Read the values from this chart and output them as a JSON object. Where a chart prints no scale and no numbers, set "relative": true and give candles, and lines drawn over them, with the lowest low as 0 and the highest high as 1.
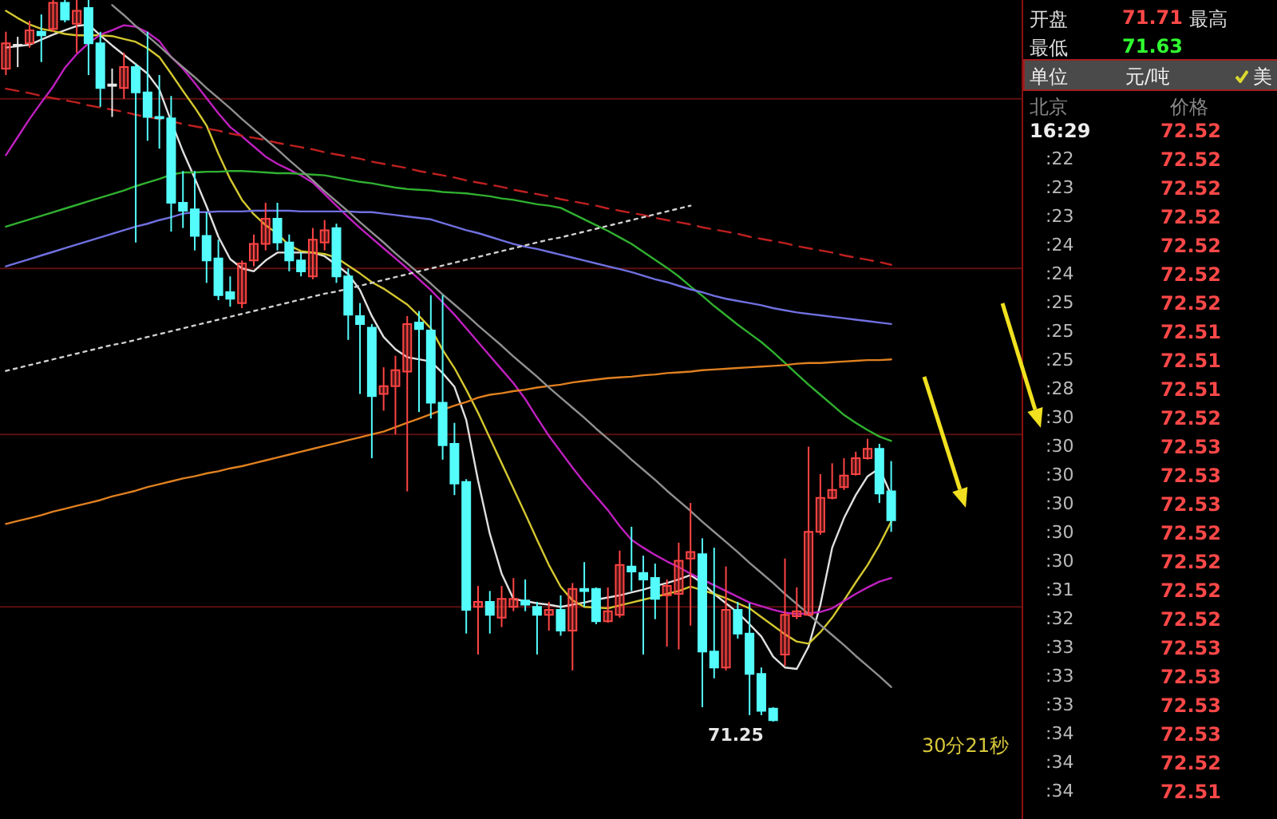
{
  "chart_data": [
    {
      "type": "candlestick",
      "relative": true,
      "tick_labels": false,
      "categories": [
        null,
        null,
        null,
        null,
        null,
        null,
        null,
        null,
        null,
        null,
        null,
        null,
        null,
        null,
        null,
        null,
        null,
        null,
        null,
        null,
        null,
        null,
        null,
        null,
        null,
        null,
        null,
        null,
        null,
        null,
        null,
        null,
        null,
        null,
        null,
        null,
        null,
        null,
        null,
        null,
        null,
        null,
        null,
        null,
        null,
        null,
        null,
        null,
        null,
        null,
        null,
        null,
        null,
        null,
        null,
        null,
        null,
        null,
        null,
        null,
        null,
        null,
        null,
        null,
        null,
        null,
        null,
        null,
        null,
        null,
        null,
        null,
        null,
        null,
        null,
        null
      ],
      "ohlc": [
        [
          0.905,
          0.956,
          0.896,
          0.94
        ],
        [
          0.938,
          0.949,
          0.907,
          0.937
        ],
        [
          0.94,
          0.971,
          0.934,
          0.958
        ],
        [
          0.956,
          0.98,
          0.914,
          0.951
        ],
        [
          0.96,
          1,
          0.956,
          0.996
        ],
        [
          0.996,
          1,
          0.969,
          0.973
        ],
        [
          0.967,
          1,
          0.927,
          0.985
        ],
        [
          0.989,
          1,
          0.896,
          0.94
        ],
        [
          0.94,
          0.956,
          0.852,
          0.878
        ],
        [
          0.883,
          0.905,
          0.838,
          0.881
        ],
        [
          0.878,
          0.927,
          0.863,
          0.907
        ],
        [
          0.907,
          0.912,
          0.664,
          0.872
        ],
        [
          0.872,
          0.956,
          0.805,
          0.838
        ],
        [
          0.838,
          0.896,
          0.794,
          0.836
        ],
        [
          0.836,
          0.867,
          0.679,
          0.719
        ],
        [
          0.719,
          0.763,
          0.684,
          0.708
        ],
        [
          0.71,
          0.763,
          0.653,
          0.673
        ],
        [
          0.673,
          0.706,
          0.608,
          0.639
        ],
        [
          0.642,
          0.668,
          0.584,
          0.591
        ],
        [
          0.595,
          0.617,
          0.575,
          0.586
        ],
        [
          0.58,
          0.639,
          0.573,
          0.635
        ],
        [
          0.639,
          0.675,
          0.631,
          0.662
        ],
        [
          0.662,
          0.719,
          0.653,
          0.697
        ],
        [
          0.697,
          0.719,
          0.653,
          0.664
        ],
        [
          0.664,
          0.675,
          0.624,
          0.639
        ],
        [
          0.639,
          0.65,
          0.617,
          0.624
        ],
        [
          0.617,
          0.684,
          0.613,
          0.668
        ],
        [
          0.664,
          0.695,
          0.653,
          0.681
        ],
        [
          0.684,
          0.69,
          0.608,
          0.617
        ],
        [
          0.617,
          0.628,
          0.529,
          0.564
        ],
        [
          0.562,
          0.58,
          0.454,
          0.551
        ],
        [
          0.546,
          0.551,
          0.365,
          0.451
        ],
        [
          0.454,
          0.491,
          0.431,
          0.465
        ],
        [
          0.465,
          0.507,
          0.398,
          0.487
        ],
        [
          0.485,
          0.562,
          0.319,
          0.551
        ],
        [
          0.553,
          0.569,
          0.429,
          0.544
        ],
        [
          0.542,
          0.591,
          0.42,
          0.442
        ],
        [
          0.442,
          0.591,
          0.363,
          0.383
        ],
        [
          0.385,
          0.414,
          0.314,
          0.33
        ],
        [
          0.332,
          0.336,
          0.122,
          0.155
        ],
        [
          0.159,
          0.188,
          0.093,
          0.166
        ],
        [
          0.166,
          0.181,
          0.122,
          0.148
        ],
        [
          0.144,
          0.188,
          0.131,
          0.17
        ],
        [
          0.159,
          0.199,
          0.153,
          0.17
        ],
        [
          0.168,
          0.197,
          0.153,
          0.162
        ],
        [
          0.159,
          0.166,
          0.093,
          0.148
        ],
        [
          0.148,
          0.166,
          0.126,
          0.155
        ],
        [
          0.155,
          0.175,
          0.119,
          0.126
        ],
        [
          0.126,
          0.192,
          0.071,
          0.184
        ],
        [
          0.184,
          0.221,
          0.159,
          0.181
        ],
        [
          0.184,
          0.186,
          0.135,
          0.139
        ],
        [
          0.139,
          0.186,
          0.137,
          0.153
        ],
        [
          0.148,
          0.237,
          0.144,
          0.217
        ],
        [
          0.215,
          0.27,
          0.181,
          0.208
        ],
        [
          0.206,
          0.23,
          0.093,
          0.197
        ],
        [
          0.199,
          0.219,
          0.142,
          0.17
        ],
        [
          0.175,
          0.197,
          0.104,
          0.188
        ],
        [
          0.177,
          0.248,
          0.1,
          0.223
        ],
        [
          0.226,
          0.303,
          0.133,
          0.235
        ],
        [
          0.232,
          0.254,
          0.02,
          0.097
        ],
        [
          0.097,
          0.241,
          0.06,
          0.075
        ],
        [
          0.075,
          0.215,
          0.071,
          0.155
        ],
        [
          0.155,
          0.166,
          0.115,
          0.122
        ],
        [
          0.122,
          0.164,
          0.009,
          0.066
        ],
        [
          0.066,
          0.075,
          0.009,
          0.015
        ],
        [
          0.018,
          0.02,
          0,
          0.002
        ],
        [
          0.093,
          0.226,
          0.077,
          0.148
        ],
        [
          0.146,
          0.186,
          0.142,
          0.153
        ],
        [
          0.148,
          0.381,
          0.146,
          0.263
        ],
        [
          0.263,
          0.343,
          0.259,
          0.31
        ],
        [
          0.31,
          0.358,
          0.308,
          0.321
        ],
        [
          0.325,
          0.365,
          0.321,
          0.341
        ],
        [
          0.343,
          0.374,
          0.341,
          0.365
        ],
        [
          0.365,
          0.392,
          0.363,
          0.378
        ],
        [
          0.378,
          0.385,
          0.303,
          0.316
        ],
        [
          0.319,
          0.361,
          0.263,
          0.279
        ]
      ],
      "colors": [
        "#ff4444",
        "#e8e8e8",
        "#ff4444",
        "#54fcfc",
        "#ff4444",
        "#54fcfc",
        "#ff4444",
        "#54fcfc",
        "#54fcfc",
        "#e8e8e8",
        "#ff4444",
        "#54fcfc",
        "#54fcfc",
        "#54fcfc",
        "#54fcfc",
        "#54fcfc",
        "#54fcfc",
        "#54fcfc",
        "#54fcfc",
        "#54fcfc",
        "#ff4444",
        "#ff4444",
        "#ff4444",
        "#54fcfc",
        "#54fcfc",
        "#54fcfc",
        "#ff4444",
        "#ff4444",
        "#54fcfc",
        "#54fcfc",
        "#54fcfc",
        "#54fcfc",
        "#ff4444",
        "#ff4444",
        "#ff4444",
        "#54fcfc",
        "#54fcfc",
        "#54fcfc",
        "#54fcfc",
        "#54fcfc",
        "#ff4444",
        "#54fcfc",
        "#ff4444",
        "#ff4444",
        "#54fcfc",
        "#54fcfc",
        "#ff4444",
        "#54fcfc",
        "#ff4444",
        "#54fcfc",
        "#54fcfc",
        "#ff4444",
        "#ff4444",
        "#54fcfc",
        "#54fcfc",
        "#54fcfc",
        "#ff4444",
        "#ff4444",
        "#ff4444",
        "#54fcfc",
        "#54fcfc",
        "#ff4444",
        "#54fcfc",
        "#54fcfc",
        "#54fcfc",
        "#54fcfc",
        "#ff4444",
        "#ff4444",
        "#ff4444",
        "#ff4444",
        "#ff4444",
        "#ff4444",
        "#ff4444",
        "#ff4444",
        "#54fcfc",
        "#54fcfc"
      ],
      "series": [
        {
          "type": "line",
          "color": "#e0e0e0",
          "values": [
            0.934,
            0.936,
            0.938,
            0.945,
            0.952,
            0.958,
            0.964,
            0.966,
            0.951,
            0.937,
            0.924,
            0.911,
            0.898,
            0.876,
            0.832,
            0.79,
            0.753,
            0.714,
            0.672,
            0.641,
            0.628,
            0.624,
            0.639,
            0.65,
            0.65,
            0.65,
            0.65,
            0.645,
            0.633,
            0.62,
            0.598,
            0.562,
            0.533,
            0.516,
            0.505,
            0.502,
            0.499,
            0.483,
            0.464,
            0.418,
            0.334,
            0.26,
            0.205,
            0.17,
            0.167,
            0.164,
            0.162,
            0.159,
            0.162,
            0.165,
            0.169,
            0.172,
            0.175,
            0.179,
            0.183,
            0.188,
            0.192,
            0.197,
            0.203,
            0.192,
            0.177,
            0.164,
            0.151,
            0.135,
            0.118,
            0.09,
            0.075,
            0.073,
            0.104,
            0.162,
            0.241,
            0.282,
            0.314,
            0.34,
            0.351,
            0.314
          ]
        },
        {
          "type": "line",
          "color": "#d4c830",
          "values": [
            0.985,
            0.975,
            0.966,
            0.96,
            0.957,
            0.953,
            0.951,
            0.951,
            0.951,
            0.95,
            0.946,
            0.942,
            0.933,
            0.921,
            0.898,
            0.874,
            0.851,
            0.826,
            0.787,
            0.752,
            0.723,
            0.703,
            0.688,
            0.676,
            0.66,
            0.652,
            0.65,
            0.648,
            0.643,
            0.632,
            0.621,
            0.609,
            0.6,
            0.589,
            0.578,
            0.562,
            0.545,
            0.515,
            0.49,
            0.46,
            0.428,
            0.393,
            0.358,
            0.323,
            0.288,
            0.252,
            0.217,
            0.187,
            0.168,
            0.159,
            0.158,
            0.157,
            0.161,
            0.165,
            0.169,
            0.173,
            0.177,
            0.181,
            0.187,
            0.182,
            0.177,
            0.171,
            0.164,
            0.157,
            0.145,
            0.133,
            0.121,
            0.111,
            0.108,
            0.124,
            0.144,
            0.168,
            0.193,
            0.217,
            0.245,
            0.277
          ]
        },
        {
          "type": "line",
          "color": "#c020c0",
          "values": [
            0.785,
            0.81,
            0.835,
            0.858,
            0.88,
            0.906,
            0.925,
            0.94,
            0.952,
            0.958,
            0.965,
            0.963,
            0.955,
            0.943,
            0.921,
            0.905,
            0.885,
            0.864,
            0.843,
            0.824,
            0.811,
            0.797,
            0.783,
            0.773,
            0.765,
            0.757,
            0.747,
            0.731,
            0.715,
            0.699,
            0.684,
            0.67,
            0.656,
            0.642,
            0.628,
            0.613,
            0.598,
            0.581,
            0.564,
            0.545,
            0.526,
            0.507,
            0.488,
            0.469,
            0.447,
            0.421,
            0.396,
            0.374,
            0.352,
            0.331,
            0.312,
            0.293,
            0.271,
            0.252,
            0.241,
            0.231,
            0.222,
            0.214,
            0.205,
            0.197,
            0.189,
            0.181,
            0.173,
            0.165,
            0.16,
            0.155,
            0.151,
            0.149,
            0.15,
            0.152,
            0.157,
            0.167,
            0.177,
            0.186,
            0.194,
            0.199
          ]
        },
        {
          "type": "line",
          "color": "#30b030",
          "values": [
            0.686,
            0.691,
            0.696,
            0.701,
            0.706,
            0.711,
            0.716,
            0.721,
            0.726,
            0.731,
            0.736,
            0.742,
            0.747,
            0.752,
            0.758,
            0.761,
            0.761,
            0.762,
            0.762,
            0.763,
            0.763,
            0.762,
            0.761,
            0.76,
            0.76,
            0.759,
            0.758,
            0.757,
            0.754,
            0.751,
            0.748,
            0.746,
            0.743,
            0.74,
            0.738,
            0.737,
            0.736,
            0.734,
            0.733,
            0.732,
            0.73,
            0.728,
            0.725,
            0.723,
            0.72,
            0.717,
            0.715,
            0.712,
            0.704,
            0.696,
            0.688,
            0.68,
            0.671,
            0.662,
            0.651,
            0.64,
            0.629,
            0.617,
            0.603,
            0.59,
            0.576,
            0.563,
            0.55,
            0.538,
            0.526,
            0.512,
            0.497,
            0.482,
            0.467,
            0.453,
            0.439,
            0.425,
            0.414,
            0.404,
            0.395,
            0.389
          ]
        },
        {
          "type": "line",
          "color": "#7070e0",
          "values": [
            0.631,
            0.636,
            0.641,
            0.646,
            0.651,
            0.656,
            0.661,
            0.666,
            0.671,
            0.676,
            0.681,
            0.686,
            0.69,
            0.695,
            0.699,
            0.704,
            0.706,
            0.706,
            0.707,
            0.707,
            0.707,
            0.708,
            0.708,
            0.708,
            0.708,
            0.707,
            0.707,
            0.707,
            0.707,
            0.707,
            0.706,
            0.706,
            0.704,
            0.702,
            0.7,
            0.698,
            0.696,
            0.691,
            0.686,
            0.681,
            0.677,
            0.672,
            0.667,
            0.662,
            0.658,
            0.655,
            0.651,
            0.647,
            0.643,
            0.639,
            0.635,
            0.631,
            0.627,
            0.623,
            0.618,
            0.613,
            0.609,
            0.604,
            0.599,
            0.595,
            0.59,
            0.586,
            0.583,
            0.58,
            0.577,
            0.573,
            0.57,
            0.567,
            0.565,
            0.563,
            0.561,
            0.559,
            0.557,
            0.555,
            0.553,
            0.551
          ]
        },
        {
          "type": "line",
          "color": "#e08020",
          "values": [
            0.274,
            0.278,
            0.282,
            0.286,
            0.291,
            0.295,
            0.299,
            0.303,
            0.307,
            0.312,
            0.316,
            0.32,
            0.325,
            0.329,
            0.333,
            0.337,
            0.34,
            0.344,
            0.347,
            0.351,
            0.354,
            0.358,
            0.362,
            0.366,
            0.37,
            0.374,
            0.378,
            0.382,
            0.386,
            0.39,
            0.394,
            0.398,
            0.402,
            0.408,
            0.414,
            0.42,
            0.426,
            0.432,
            0.438,
            0.443,
            0.449,
            0.453,
            0.455,
            0.458,
            0.46,
            0.463,
            0.465,
            0.467,
            0.47,
            0.472,
            0.474,
            0.476,
            0.477,
            0.478,
            0.48,
            0.481,
            0.483,
            0.484,
            0.485,
            0.487,
            0.488,
            0.489,
            0.49,
            0.491,
            0.492,
            0.493,
            0.494,
            0.496,
            0.497,
            0.497,
            0.498,
            0.499,
            0.5,
            0.501,
            0.501,
            0.502
          ]
        },
        {
          "type": "line",
          "color": "#909090",
          "values": [
            null,
            null,
            null,
            null,
            null,
            null,
            null,
            null,
            null,
            0.993,
            0.979,
            0.964,
            0.95,
            0.936,
            0.921,
            0.907,
            0.893,
            0.878,
            0.864,
            0.85,
            0.835,
            0.821,
            0.807,
            0.793,
            0.778,
            0.764,
            0.75,
            0.735,
            0.721,
            0.707,
            0.692,
            0.678,
            0.664,
            0.649,
            0.635,
            0.621,
            0.607,
            0.592,
            0.578,
            0.564,
            0.549,
            0.535,
            0.521,
            0.506,
            0.492,
            0.478,
            0.463,
            0.449,
            0.435,
            0.421,
            0.406,
            0.392,
            0.378,
            0.363,
            0.349,
            0.335,
            0.32,
            0.306,
            0.292,
            0.277,
            0.263,
            0.249,
            0.235,
            0.22,
            0.206,
            0.192,
            0.177,
            0.163,
            0.149,
            0.134,
            0.12,
            0.106,
            0.091,
            0.077,
            0.063,
            0.048
          ]
        },
        {
          "type": "line",
          "color": "#c02020",
          "line_style": "dashed",
          "values": [
            0.877,
            0.874,
            0.871,
            0.867,
            0.864,
            0.861,
            0.858,
            0.854,
            0.851,
            0.848,
            0.845,
            0.841,
            0.838,
            0.835,
            0.832,
            0.828,
            0.825,
            0.822,
            0.819,
            0.815,
            0.812,
            0.809,
            0.806,
            0.802,
            0.799,
            0.796,
            0.793,
            0.789,
            0.786,
            0.783,
            0.78,
            0.776,
            0.773,
            0.77,
            0.767,
            0.763,
            0.76,
            0.757,
            0.754,
            0.75,
            0.747,
            0.744,
            0.741,
            0.737,
            0.734,
            0.731,
            0.728,
            0.724,
            0.721,
            0.718,
            0.715,
            0.711,
            0.708,
            0.705,
            0.702,
            0.698,
            0.695,
            0.692,
            0.689,
            0.685,
            0.682,
            0.679,
            0.676,
            0.672,
            0.669,
            0.666,
            0.663,
            0.659,
            0.656,
            0.653,
            0.65,
            0.646,
            0.643,
            0.64,
            0.637,
            0.633
          ]
        },
        {
          "type": "line",
          "color": "#d0d0d0",
          "line_style": "dotted",
          "values": [
            0.486,
            0.49,
            0.494,
            0.498,
            0.502,
            0.506,
            0.51,
            0.514,
            0.518,
            0.522,
            0.525,
            0.529,
            0.533,
            0.537,
            0.541,
            0.545,
            0.549,
            0.553,
            0.557,
            0.561,
            0.565,
            0.569,
            0.573,
            0.577,
            0.581,
            0.585,
            0.589,
            0.593,
            0.596,
            0.6,
            0.604,
            0.608,
            0.612,
            0.616,
            0.62,
            0.624,
            0.628,
            0.632,
            0.636,
            0.64,
            0.644,
            0.648,
            0.652,
            0.656,
            0.66,
            0.664,
            0.668,
            0.671,
            0.675,
            0.679,
            0.683,
            0.687,
            0.691,
            0.695,
            0.699,
            0.703,
            0.707,
            0.711,
            0.715,
            null,
            null,
            null,
            null,
            null,
            null,
            null,
            null,
            null,
            null,
            null,
            null,
            null,
            null,
            null,
            null,
            null
          ]
        }
      ],
      "ref_lines": [
        {
          "axis": "y",
          "value": 0.863,
          "color": "#5c1010"
        },
        {
          "axis": "y",
          "value": 0.628,
          "color": "#5c1010"
        },
        {
          "axis": "y",
          "value": 0.398,
          "color": "#5c1010"
        },
        {
          "axis": "y",
          "value": 0.159,
          "color": "#5c1010"
        }
      ],
      "annotations": [
        "71.25",
        "30分21秒"
      ]
    },
    {
      "type": "other",
      "annotations": [
        "开盘",
        "71.71",
        "最高",
        "最低",
        "71.63",
        "单位",
        "元/吨",
        "美",
        "北京",
        "价格"
      ],
      "categories": [
        "16:29",
        ":22",
        ":23",
        ":23",
        ":24",
        ":24",
        ":25",
        ":25",
        ":25",
        ":28",
        ":30",
        ":30",
        ":30",
        ":30",
        ":30",
        ":30",
        ":31",
        ":32",
        ":33",
        ":33",
        ":33",
        ":34",
        ":34",
        ":34"
      ],
      "values": [
        72.52,
        72.52,
        72.52,
        72.52,
        72.52,
        72.52,
        72.52,
        72.51,
        72.51,
        72.51,
        72.52,
        72.53,
        72.53,
        72.53,
        72.52,
        72.52,
        72.52,
        72.52,
        72.53,
        72.53,
        72.53,
        72.53,
        72.52,
        72.51
      ],
      "data_labels": true
    }
  ]
}
